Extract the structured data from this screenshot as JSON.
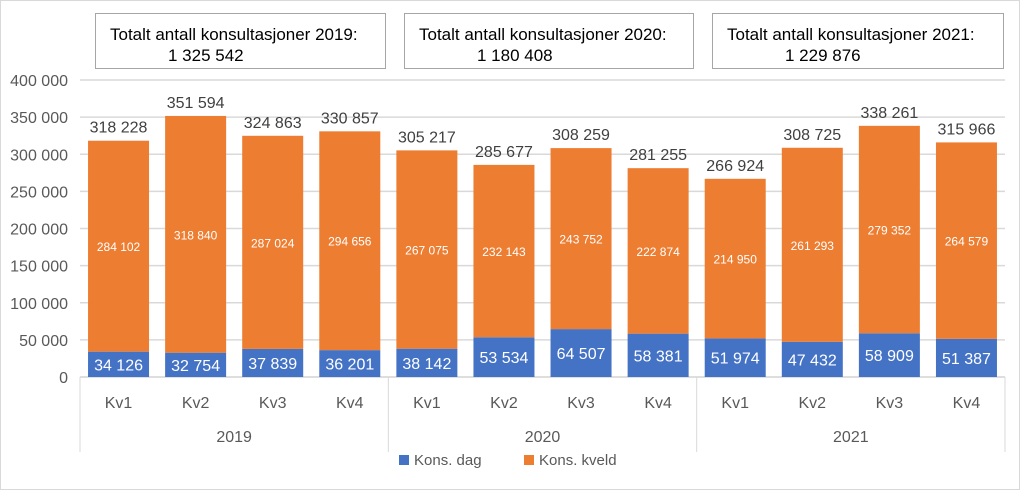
{
  "totals_boxes": [
    {
      "label": "Totalt antall konsultasjoner 2019:",
      "value": "1 325 542"
    },
    {
      "label": "Totalt antall konsultasjoner 2020:",
      "value": "1 180 408"
    },
    {
      "label": "Totalt antall konsultasjoner 2021:",
      "value": "1 229 876"
    }
  ],
  "chart_data": {
    "type": "bar",
    "stacked": true,
    "groups": [
      "2019",
      "2020",
      "2021"
    ],
    "categories": [
      "Kv1",
      "Kv2",
      "Kv3",
      "Kv4",
      "Kv1",
      "Kv2",
      "Kv3",
      "Kv4",
      "Kv1",
      "Kv2",
      "Kv3",
      "Kv4"
    ],
    "series": [
      {
        "name": "Kons. dag",
        "color": "#4472c4",
        "values": [
          34126,
          32754,
          37839,
          36201,
          38142,
          53534,
          64507,
          58381,
          51974,
          47432,
          58909,
          51387
        ],
        "labels": [
          "34 126",
          "32 754",
          "37 839",
          "36 201",
          "38 142",
          "53 534",
          "64 507",
          "58 381",
          "51 974",
          "47 432",
          "58 909",
          "51 387"
        ]
      },
      {
        "name": "Kons. kveld",
        "color": "#ed7d31",
        "values": [
          284102,
          318840,
          287024,
          294656,
          267075,
          232143,
          243752,
          222874,
          214950,
          261293,
          279352,
          264579
        ],
        "labels": [
          "284 102",
          "318 840",
          "287 024",
          "294 656",
          "267 075",
          "232 143",
          "243 752",
          "222 874",
          "214 950",
          "261 293",
          "279 352",
          "264 579"
        ]
      }
    ],
    "totals": [
      318228,
      351594,
      324863,
      330857,
      305217,
      285677,
      308259,
      281255,
      266924,
      308725,
      338261,
      315966
    ],
    "total_labels": [
      "318 228",
      "351 594",
      "324 863",
      "330 857",
      "305 217",
      "285 677",
      "308 259",
      "281 255",
      "266 924",
      "308 725",
      "338 261",
      "315 966"
    ],
    "ylim": [
      0,
      400000
    ],
    "yticks": [
      "0",
      "50 000",
      "100 000",
      "150 000",
      "200 000",
      "250 000",
      "300 000",
      "350 000",
      "400 000"
    ],
    "grid": true,
    "legend": "bottom"
  }
}
